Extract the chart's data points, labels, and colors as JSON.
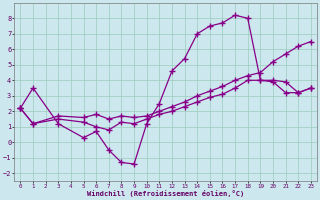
{
  "xlabel": "Windchill (Refroidissement éolien,°C)",
  "bg_color": "#cce8ee",
  "grid_color": "#99ccbb",
  "line_color": "#880088",
  "xlim": [
    -0.5,
    23.5
  ],
  "ylim": [
    -2.5,
    9.0
  ],
  "xticks": [
    0,
    1,
    2,
    3,
    4,
    5,
    6,
    7,
    8,
    9,
    10,
    11,
    12,
    13,
    14,
    15,
    16,
    17,
    18,
    19,
    20,
    21,
    22,
    23
  ],
  "yticks": [
    -2,
    -1,
    0,
    1,
    2,
    3,
    4,
    5,
    6,
    7,
    8
  ],
  "line1_x": [
    0,
    1,
    3,
    5,
    6,
    7,
    8,
    9,
    10,
    11,
    12,
    13,
    14,
    15,
    16,
    17,
    18,
    19,
    20,
    21,
    22,
    23
  ],
  "line1_y": [
    2.2,
    3.5,
    1.2,
    0.3,
    0.7,
    -0.5,
    -1.3,
    -1.4,
    1.2,
    2.5,
    4.6,
    5.4,
    7.0,
    7.5,
    7.7,
    8.2,
    8.0,
    4.0,
    4.0,
    3.9,
    3.2,
    3.5
  ],
  "line2_x": [
    0,
    1,
    3,
    5,
    6,
    7,
    8,
    9,
    10,
    11,
    12,
    13,
    14,
    15,
    16,
    17,
    18,
    19,
    20,
    21,
    22,
    23
  ],
  "line2_y": [
    2.2,
    1.2,
    1.5,
    1.3,
    1.0,
    0.8,
    1.3,
    1.2,
    1.5,
    1.8,
    2.0,
    2.3,
    2.6,
    2.9,
    3.1,
    3.5,
    4.0,
    4.0,
    3.9,
    3.2,
    3.2,
    3.5
  ],
  "line3_x": [
    0,
    1,
    3,
    5,
    6,
    7,
    8,
    9,
    10,
    11,
    12,
    13,
    14,
    15,
    16,
    17,
    18,
    19,
    20,
    21,
    22,
    23
  ],
  "line3_y": [
    2.2,
    1.2,
    1.7,
    1.6,
    1.8,
    1.5,
    1.7,
    1.6,
    1.7,
    2.0,
    2.3,
    2.6,
    3.0,
    3.3,
    3.6,
    4.0,
    4.3,
    4.5,
    5.2,
    5.7,
    6.2,
    6.5
  ]
}
